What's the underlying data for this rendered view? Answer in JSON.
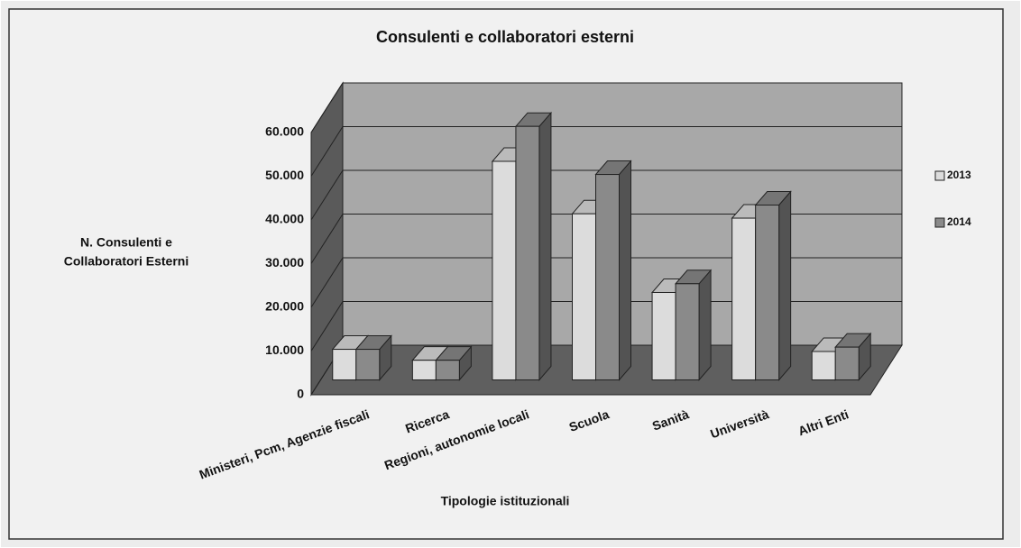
{
  "chart_data": {
    "type": "bar3d",
    "title": "Consulenti e collaboratori esterni",
    "xlabel": "Tipologie istituzionali",
    "ylabel": [
      "N. Consulenti e",
      "Collaboratori Esterni"
    ],
    "categories": [
      "Ministeri, Pcm, Agenzie fiscali",
      "Ricerca",
      "Regioni, autonomie locali",
      "Scuola",
      "Sanità",
      "Università",
      "Altri Enti"
    ],
    "series": [
      {
        "name": "2013",
        "color": "#dcdcdc",
        "values": [
          7000,
          4500,
          50000,
          38000,
          20000,
          37000,
          6500
        ]
      },
      {
        "name": "2014",
        "color": "#8a8a8a",
        "values": [
          7000,
          4500,
          58000,
          47000,
          22000,
          40000,
          7500
        ]
      }
    ],
    "ylim": [
      0,
      60000
    ],
    "yticks": [
      0,
      {
        "value": 10000,
        "label": "10.000"
      },
      {
        "value": 20000,
        "label": "20.000"
      },
      {
        "value": 30000,
        "label": "30.000"
      },
      {
        "value": 40000,
        "label": "40.000"
      },
      {
        "value": 50000,
        "label": "50.000"
      },
      {
        "value": 60000,
        "label": "60.000"
      }
    ],
    "grid": true,
    "legend": "right"
  }
}
